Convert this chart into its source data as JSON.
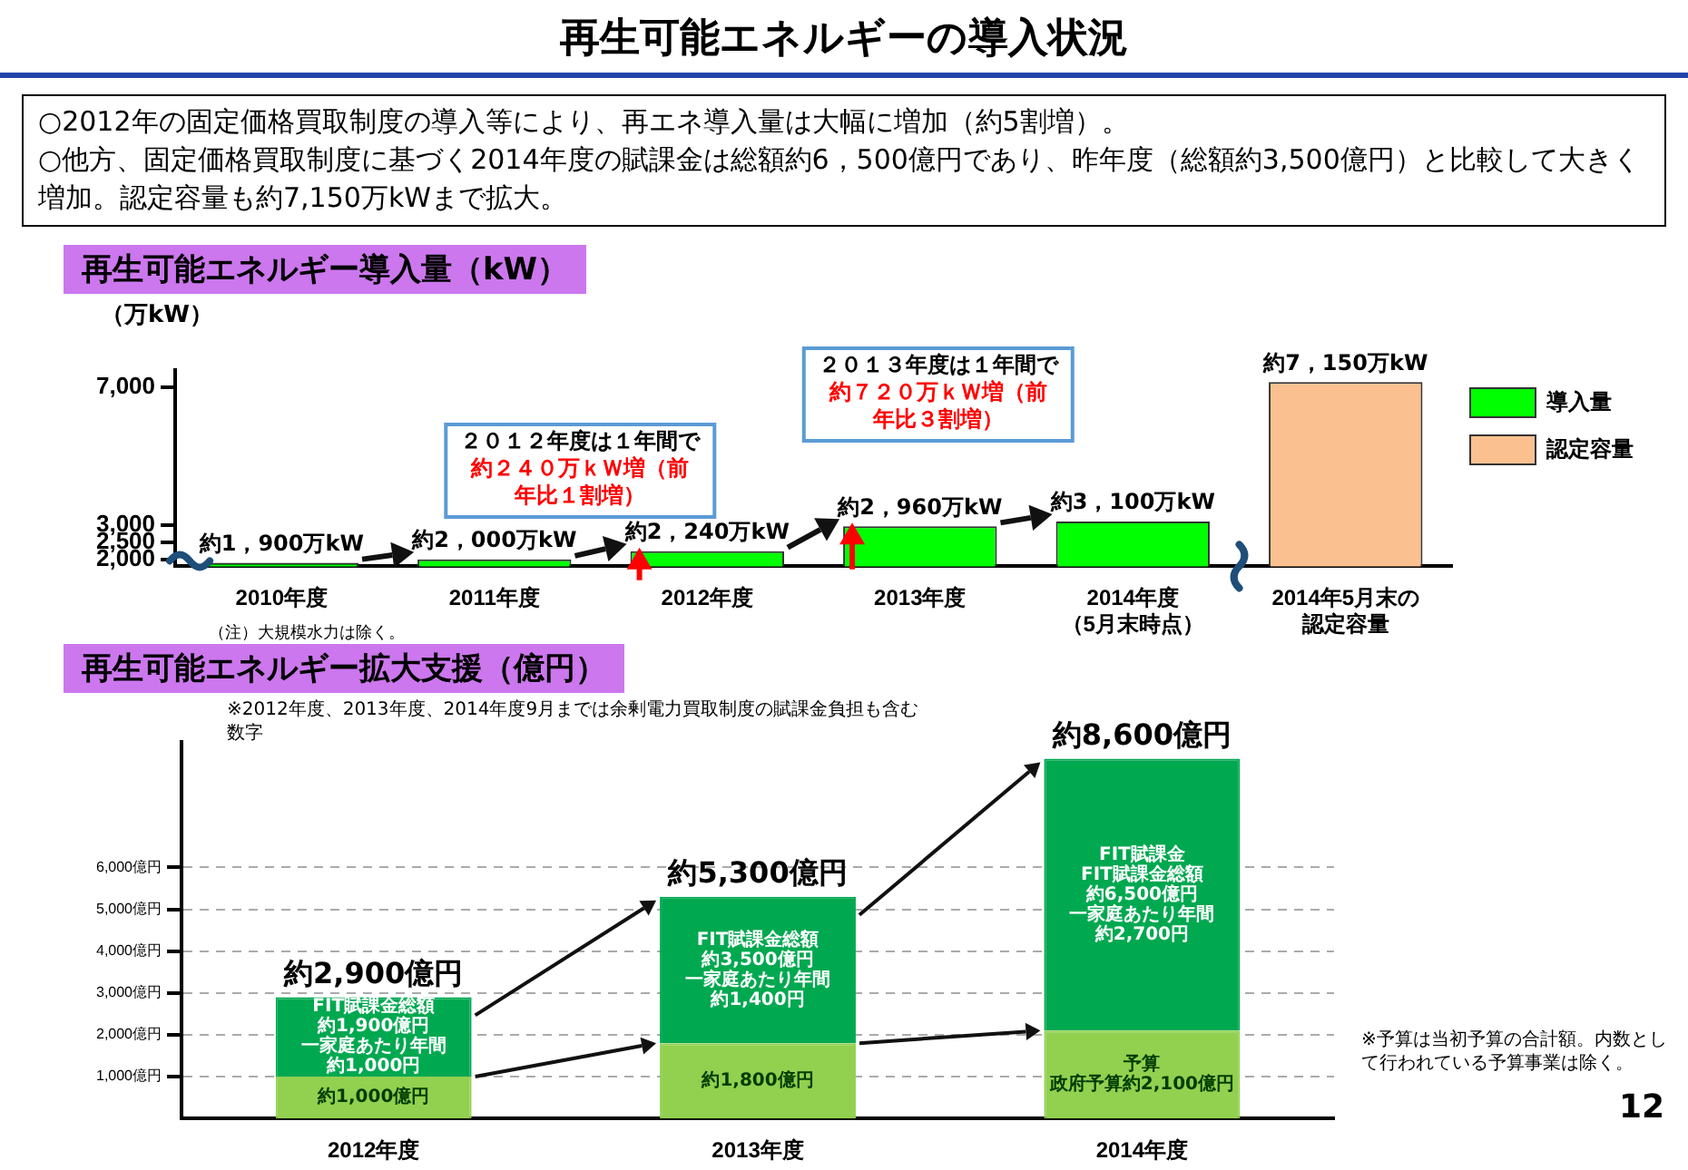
{
  "chart_data": [
    {
      "type": "other",
      "title": "再生可能エネルギーの導入状況",
      "annotations": [
        "○2012年の固定価格買取制度の導入等により、再エネ導入量は大幅に増加（約5割増）。",
        "○他方、固定価格買取制度に基づく2014年度の賦課金は総額約6，500億円であり、昨年度（総額約3,500億円）と比較して大きく増加。認定容量も約7,150万kWまで拡大。",
        "12"
      ]
    },
    {
      "type": "bar",
      "title": "再生可能エネルギー導入量（kW）",
      "ylabel": "（万kW）",
      "categories": [
        "2010年度",
        "2011年度",
        "2012年度",
        "2013年度",
        "2014年度（5月末時点）",
        "2014年5月末の認定容量"
      ],
      "series": [
        {
          "name": "導入量",
          "color": "#00ff00",
          "values": [
            1900,
            2000,
            2240,
            2960,
            3100,
            null
          ],
          "value_labels": [
            "約1，900万kW",
            "約2，000万kW",
            "約2，240万kW",
            "約2，960万kW",
            "約3，100万kW",
            null
          ]
        },
        {
          "name": "認定容量",
          "color": "#fac090",
          "values": [
            null,
            null,
            null,
            null,
            null,
            7150
          ],
          "value_labels": [
            null,
            null,
            null,
            null,
            null,
            "約7，150万kW"
          ]
        }
      ],
      "ylim": [
        1800,
        7500
      ],
      "yticks": [
        {
          "value": 2000,
          "label": "2,000"
        },
        {
          "value": 2500,
          "label": "2,500"
        },
        {
          "value": 3000,
          "label": "3,000"
        },
        {
          "value": 7000,
          "label": "7,000"
        }
      ],
      "grid": false,
      "legend": "right",
      "annotations": [
        "２０１２年度は１年間で約２４０万ｋＷ増（前年比１割増）",
        "２０１３年度は１年間で約７２０万ｋＷ増（前年比３割増）",
        "（注）大規模水力は除く。"
      ]
    },
    {
      "type": "bar",
      "title": "再生可能エネルギー拡大支援（億円）",
      "categories": [
        "2012年度",
        "2013年度",
        "2014年度"
      ],
      "stacked": true,
      "series": [
        {
          "name": "予算",
          "color": "#92d050",
          "values": [
            1000,
            1800,
            2100
          ],
          "value_labels": [
            "約1,000億円",
            "約1,800億円",
            "政府予算約2,100億円"
          ]
        },
        {
          "name": "FIT賦課金",
          "color": "#00a850",
          "values": [
            1900,
            3500,
            6500
          ],
          "value_labels": [
            "FIT賦課金総額約1,900億円一家庭あたり年間約1,000円",
            "FIT賦課金総額約3,500億円一家庭あたり年間約1,400円",
            "FIT賦課金総額約6,500億円一家庭あたり年間約2,700円"
          ]
        }
      ],
      "totals": [
        "約2,900億円",
        "約5,300億円",
        "約8,600億円"
      ],
      "ylim": [
        0,
        9000
      ],
      "yticks": [
        {
          "value": 1000,
          "label": "1,000億円"
        },
        {
          "value": 2000,
          "label": "2,000億円"
        },
        {
          "value": 3000,
          "label": "3,000億円"
        },
        {
          "value": 4000,
          "label": "4,000億円"
        },
        {
          "value": 5000,
          "label": "5,000億円"
        },
        {
          "value": 6000,
          "label": "6,000億円"
        }
      ],
      "grid": "y",
      "annotations": [
        "※2012年度、2013年度、2014年度9月までは余剰電力買取制度の賦課金負担も含む数字",
        "※予算は当初予算の合計額。内数として行われている予算事業は除く。"
      ]
    }
  ]
}
